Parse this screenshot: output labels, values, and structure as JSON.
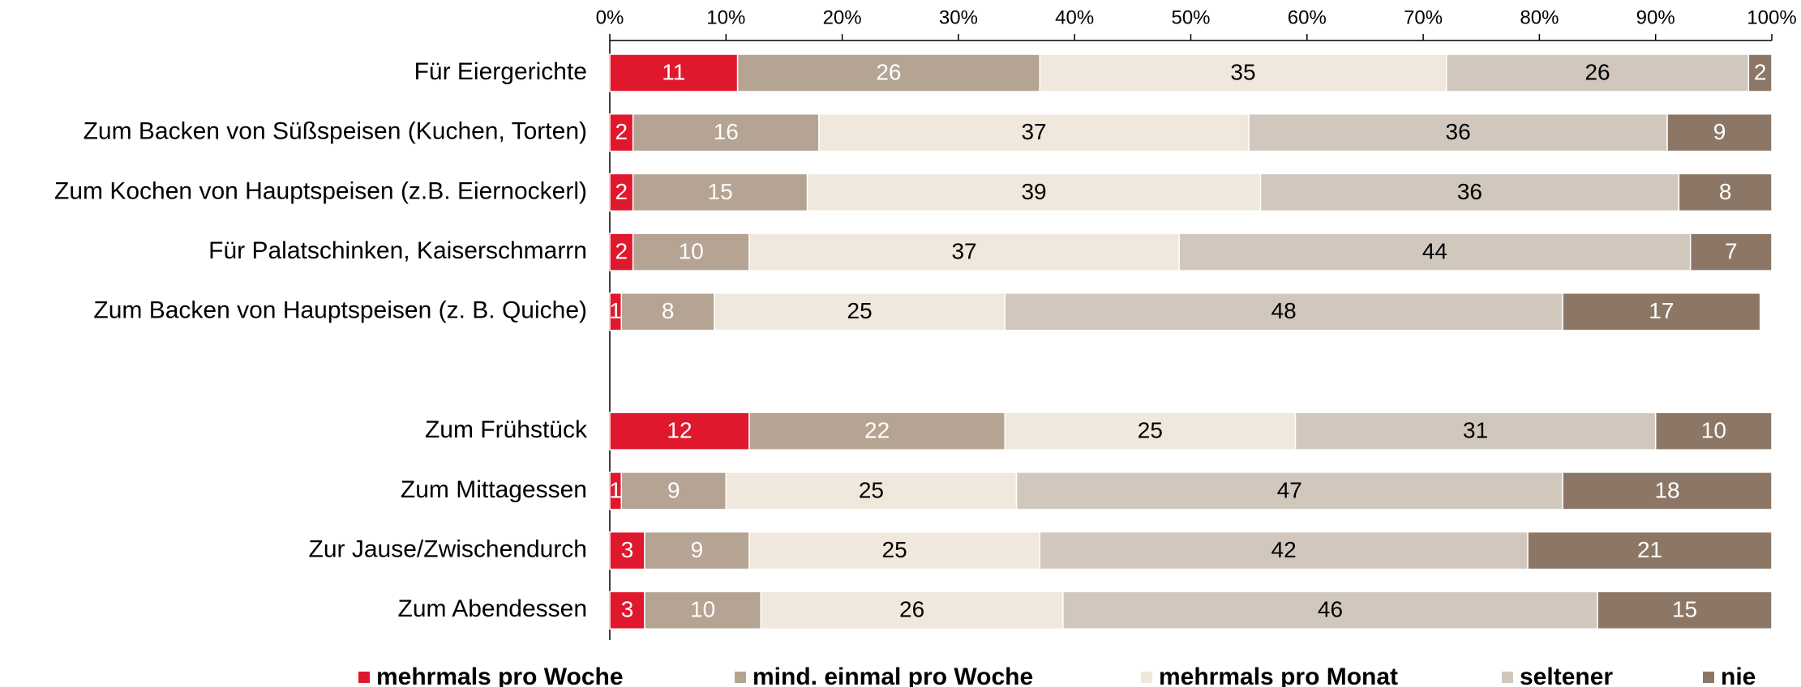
{
  "chart_data": {
    "type": "bar",
    "orientation": "horizontal",
    "stacked": true,
    "categories": [
      "Für Eiergerichte",
      "Zum Backen von Süßspeisen (Kuchen, Torten)",
      "Zum Kochen von Hauptspeisen (z.B. Eiernockerl)",
      "Für Palatschinken, Kaiserschmarrn",
      "Zum Backen von Hauptspeisen (z. B. Quiche)",
      null,
      "Zum Frühstück",
      "Zum Mittagessen",
      "Zur Jause/Zwischendurch",
      "Zum Abendessen"
    ],
    "series": [
      {
        "name": "mehrmals pro Woche",
        "color": "#e0182d",
        "values": [
          11,
          2,
          2,
          2,
          1,
          null,
          12,
          1,
          3,
          3
        ]
      },
      {
        "name": "mind. einmal pro Woche",
        "color": "#b5a393",
        "values": [
          26,
          16,
          15,
          10,
          8,
          null,
          22,
          9,
          9,
          10
        ]
      },
      {
        "name": "mehrmals pro Monat",
        "color": "#f0e8dc",
        "values": [
          35,
          37,
          39,
          37,
          25,
          null,
          25,
          25,
          25,
          26
        ]
      },
      {
        "name": "seltener",
        "color": "#d1c7bd",
        "values": [
          26,
          36,
          36,
          44,
          48,
          null,
          31,
          47,
          42,
          46
        ]
      },
      {
        "name": "nie",
        "color": "#8c7766",
        "values": [
          2,
          9,
          8,
          7,
          17,
          null,
          10,
          18,
          21,
          15
        ]
      }
    ],
    "xlim": [
      0,
      100
    ],
    "xticks": [
      {
        "value": 0,
        "label": "0%"
      },
      {
        "value": 10,
        "label": "10%"
      },
      {
        "value": 20,
        "label": "20%"
      },
      {
        "value": 30,
        "label": "30%"
      },
      {
        "value": 40,
        "label": "40%"
      },
      {
        "value": 50,
        "label": "50%"
      },
      {
        "value": 60,
        "label": "60%"
      },
      {
        "value": 70,
        "label": "70%"
      },
      {
        "value": 80,
        "label": "80%"
      },
      {
        "value": 90,
        "label": "90%"
      },
      {
        "value": 100,
        "label": "100%"
      }
    ],
    "legend": "bottom"
  }
}
